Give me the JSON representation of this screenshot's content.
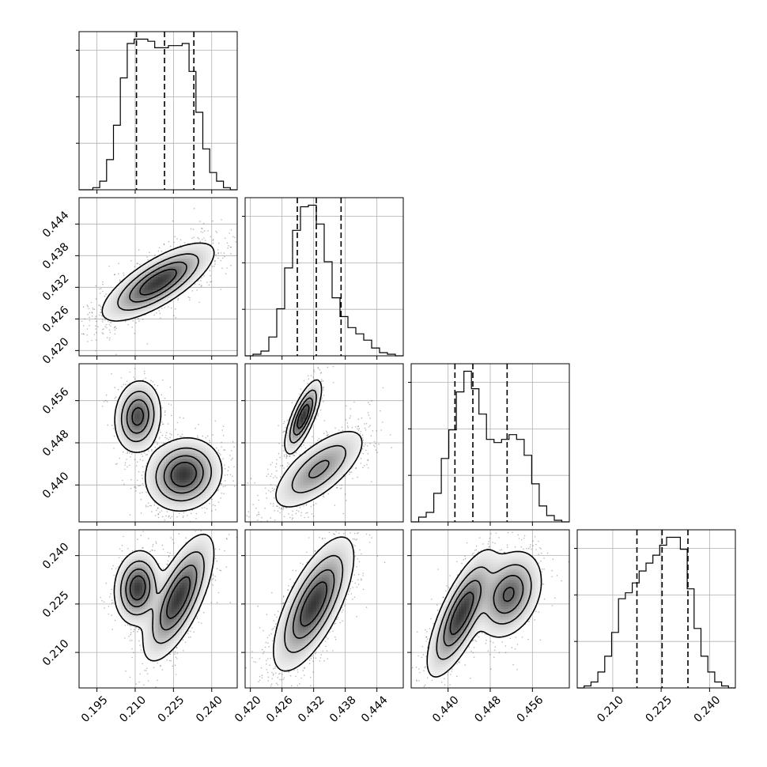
{
  "chart_data": {
    "type": "scatter",
    "title": "",
    "grid": true,
    "parameters": [
      {
        "range": [
          0.188,
          0.25
        ],
        "ticks": [
          0.195,
          0.21,
          0.225,
          0.24
        ],
        "tick_labels": [
          "0.195",
          "0.210",
          "0.225",
          "0.240"
        ],
        "quantiles": [
          0.2105,
          0.2215,
          0.233
        ]
      },
      {
        "range": [
          0.419,
          0.449
        ],
        "ticks": [
          0.42,
          0.426,
          0.432,
          0.438,
          0.444
        ],
        "tick_labels": [
          "0.420",
          "0.426",
          "0.432",
          "0.438",
          "0.444"
        ],
        "quantiles": [
          0.4289,
          0.4325,
          0.4372
        ]
      },
      {
        "range": [
          0.433,
          0.463
        ],
        "ticks": [
          0.44,
          0.448,
          0.456
        ],
        "tick_labels": [
          "0.440",
          "0.448",
          "0.456"
        ],
        "quantiles": [
          0.4413,
          0.4447,
          0.4512
        ]
      },
      {
        "range": [
          0.199,
          0.248
        ],
        "ticks": [
          0.21,
          0.225,
          0.24
        ],
        "tick_labels": [
          "0.210",
          "0.225",
          "0.240"
        ],
        "quantiles": [
          0.2175,
          0.2253,
          0.2333
        ]
      }
    ],
    "histograms": [
      {
        "edges": [
          0.188,
          0.25
        ],
        "counts": [
          0,
          0,
          1,
          4,
          14,
          30,
          52,
          68,
          70,
          70,
          69,
          66,
          66,
          67,
          67,
          68,
          55,
          36,
          19,
          8,
          4,
          1,
          0
        ]
      },
      {
        "edges": [
          0.419,
          0.449
        ],
        "counts": [
          0,
          1,
          3,
          12,
          30,
          56,
          80,
          95,
          96,
          84,
          60,
          37,
          25,
          18,
          14,
          10,
          5,
          2,
          1,
          0
        ]
      },
      {
        "edges": [
          0.433,
          0.463
        ],
        "counts": [
          0,
          3,
          6,
          18,
          40,
          58,
          82,
          95,
          84,
          68,
          52,
          50,
          52,
          55,
          52,
          42,
          24,
          10,
          4,
          1,
          0
        ]
      },
      {
        "edges": [
          0.199,
          0.248
        ],
        "counts": [
          0,
          1,
          3,
          8,
          16,
          28,
          45,
          48,
          53,
          59,
          63,
          67,
          72,
          76,
          76,
          70,
          50,
          30,
          16,
          8,
          3,
          1,
          0
        ]
      }
    ],
    "pairs": [
      {
        "x": 0,
        "y": 1,
        "clusters": [
          {
            "mean": [
              0.219,
              0.433
            ],
            "sd": [
              0.0095,
              0.0032
            ],
            "corr": 0.75,
            "weight": 1.0
          }
        ]
      },
      {
        "x": 0,
        "y": 2,
        "clusters": [
          {
            "mean": [
              0.211,
              0.453
            ],
            "sd": [
              0.004,
              0.003
            ],
            "corr": 0.1,
            "weight": 0.35
          },
          {
            "mean": [
              0.229,
              0.442
            ],
            "sd": [
              0.0065,
              0.003
            ],
            "corr": 0.1,
            "weight": 0.65
          }
        ]
      },
      {
        "x": 1,
        "y": 2,
        "clusters": [
          {
            "mean": [
              0.43,
              0.453
            ],
            "sd": [
              0.0015,
              0.003
            ],
            "corr": 0.75,
            "weight": 0.35
          },
          {
            "mean": [
              0.433,
              0.443
            ],
            "sd": [
              0.004,
              0.0035
            ],
            "corr": 0.7,
            "weight": 0.65
          }
        ]
      },
      {
        "x": 0,
        "y": 3,
        "clusters": [
          {
            "mean": [
              0.211,
              0.23
            ],
            "sd": [
              0.004,
              0.005
            ],
            "corr": 0.1,
            "weight": 0.35
          },
          {
            "mean": [
              0.227,
              0.227
            ],
            "sd": [
              0.006,
              0.0085
            ],
            "corr": 0.7,
            "weight": 0.65
          }
        ]
      },
      {
        "x": 1,
        "y": 3,
        "clusters": [
          {
            "mean": [
              0.432,
              0.225
            ],
            "sd": [
              0.0033,
              0.009
            ],
            "corr": 0.7,
            "weight": 1.0
          }
        ]
      },
      {
        "x": 2,
        "y": 3,
        "clusters": [
          {
            "mean": [
              0.4425,
              0.222
            ],
            "sd": [
              0.0028,
              0.0085
            ],
            "corr": 0.75,
            "weight": 0.55
          },
          {
            "mean": [
              0.4515,
              0.228
            ],
            "sd": [
              0.0028,
              0.006
            ],
            "corr": 0.3,
            "weight": 0.45
          }
        ]
      }
    ]
  }
}
